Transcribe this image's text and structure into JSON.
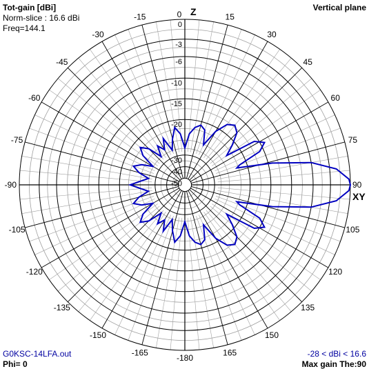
{
  "header": {
    "title": "Tot-gain [dBi]",
    "norm": "Norm-slice : 16.6 dBi",
    "freq": "Freq=144.1",
    "plane": "Vertical plane"
  },
  "footer": {
    "file": "G0KSC-14LFA.out",
    "phi": "Phi= 0",
    "range": "-28 < dBi < 16.6",
    "maxgain": "Max gain The:90"
  },
  "axes": {
    "top": "Z",
    "right": "XY"
  },
  "colors": {
    "pattern": "#0000c0",
    "grid": "#000000",
    "minorgrid": "#a0a0a0",
    "text_blue": "#0000a0"
  },
  "chart_data": {
    "type": "polar",
    "plane": "vertical",
    "angle_labels": [
      {
        "deg": 0,
        "text": "0"
      },
      {
        "deg": 15,
        "text": "15"
      },
      {
        "deg": 30,
        "text": "30"
      },
      {
        "deg": 45,
        "text": "45"
      },
      {
        "deg": 60,
        "text": "60"
      },
      {
        "deg": 75,
        "text": "75"
      },
      {
        "deg": 90,
        "text": "90"
      },
      {
        "deg": 105,
        "text": "105"
      },
      {
        "deg": 120,
        "text": "120"
      },
      {
        "deg": 135,
        "text": "135"
      },
      {
        "deg": 150,
        "text": "150"
      },
      {
        "deg": 165,
        "text": "165"
      },
      {
        "deg": 180,
        "text": "-180"
      },
      {
        "deg": -165,
        "text": "-165"
      },
      {
        "deg": -150,
        "text": "-150"
      },
      {
        "deg": -135,
        "text": "-135"
      },
      {
        "deg": -120,
        "text": "-120"
      },
      {
        "deg": -105,
        "text": "-105"
      },
      {
        "deg": -90,
        "text": "-90"
      },
      {
        "deg": -75,
        "text": "-75"
      },
      {
        "deg": -60,
        "text": "-60"
      },
      {
        "deg": -45,
        "text": "-45"
      },
      {
        "deg": -30,
        "text": "-30"
      },
      {
        "deg": -15,
        "text": "-15"
      }
    ],
    "rings": [
      {
        "db": 0,
        "text": "0",
        "r": 1.0
      },
      {
        "db": -3,
        "text": "-3",
        "r": 0.88
      },
      {
        "db": -6,
        "text": "-6",
        "r": 0.775
      },
      {
        "db": -10,
        "text": "-10",
        "r": 0.645
      },
      {
        "db": -15,
        "text": "-15",
        "r": 0.52
      },
      {
        "db": -20,
        "text": "-20",
        "r": 0.395
      },
      {
        "db": -30,
        "text": "-30",
        "r": 0.18
      },
      {
        "db": -40,
        "text": "-40",
        "r": 0.11
      },
      {
        "db": -50,
        "text": "-50",
        "r": 0.04
      }
    ],
    "pattern": [
      [
        0,
        -28
      ],
      [
        5,
        -24
      ],
      [
        10,
        -22
      ],
      [
        15,
        -21
      ],
      [
        20,
        -22
      ],
      [
        25,
        -26
      ],
      [
        30,
        -21
      ],
      [
        35,
        -18
      ],
      [
        40,
        -17
      ],
      [
        45,
        -18
      ],
      [
        50,
        -21
      ],
      [
        55,
        -24
      ],
      [
        58,
        -16
      ],
      [
        62,
        -14
      ],
      [
        66,
        -16
      ],
      [
        70,
        -22
      ],
      [
        72,
        -23
      ],
      [
        76,
        -14
      ],
      [
        80,
        -6
      ],
      [
        84,
        -2
      ],
      [
        88,
        -0.2
      ],
      [
        90,
        0
      ],
      [
        92,
        -0.2
      ],
      [
        96,
        -2
      ],
      [
        100,
        -6
      ],
      [
        104,
        -14
      ],
      [
        108,
        -23
      ],
      [
        110,
        -22
      ],
      [
        114,
        -16
      ],
      [
        118,
        -14
      ],
      [
        122,
        -16
      ],
      [
        125,
        -24
      ],
      [
        130,
        -21
      ],
      [
        135,
        -18
      ],
      [
        140,
        -17
      ],
      [
        145,
        -18
      ],
      [
        150,
        -21
      ],
      [
        155,
        -26
      ],
      [
        160,
        -22
      ],
      [
        165,
        -21
      ],
      [
        170,
        -22
      ],
      [
        175,
        -24
      ],
      [
        180,
        -28
      ],
      [
        185,
        -24
      ],
      [
        190,
        -22
      ],
      [
        195,
        -25
      ],
      [
        200,
        -28
      ],
      [
        205,
        -24
      ],
      [
        210,
        -27
      ],
      [
        215,
        -25
      ],
      [
        220,
        -28
      ],
      [
        225,
        -24
      ],
      [
        230,
        -22
      ],
      [
        235,
        -24
      ],
      [
        240,
        -28
      ],
      [
        245,
        -25
      ],
      [
        250,
        -23
      ],
      [
        255,
        -25
      ],
      [
        260,
        -28
      ],
      [
        265,
        -26
      ],
      [
        270,
        -23
      ],
      [
        275,
        -26
      ],
      [
        280,
        -28
      ],
      [
        285,
        -25
      ],
      [
        290,
        -23
      ],
      [
        295,
        -25
      ],
      [
        300,
        -28
      ],
      [
        305,
        -24
      ],
      [
        310,
        -22
      ],
      [
        315,
        -24
      ],
      [
        320,
        -28
      ],
      [
        325,
        -25
      ],
      [
        330,
        -27
      ],
      [
        335,
        -24
      ],
      [
        340,
        -28
      ],
      [
        345,
        -25
      ],
      [
        350,
        -22
      ],
      [
        355,
        -24
      ],
      [
        360,
        -28
      ]
    ]
  }
}
